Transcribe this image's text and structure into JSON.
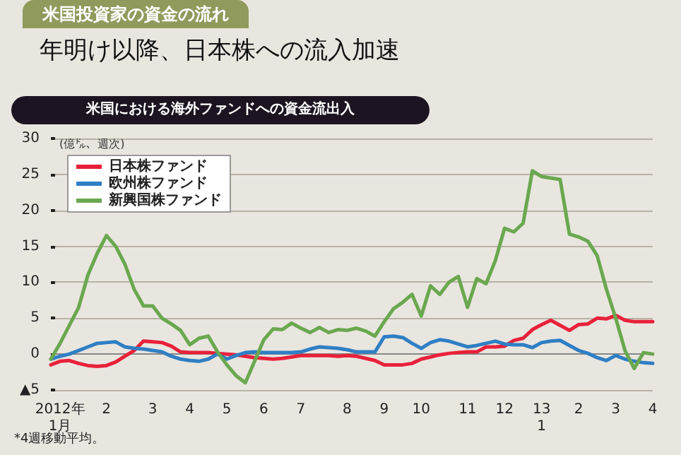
{
  "chart_data": {
    "type": "line",
    "title": "年明け以降、日本株への流入加速",
    "subtitle": "米国における海外ファンドへの資金流出入",
    "annotations": [
      "米国投資家の資金の流れ",
      "*4週移動平均。"
    ],
    "ylabel": "(億㌦、週次)",
    "categories": [
      null,
      "2012年\n1月",
      null,
      null,
      null,
      null,
      "2",
      null,
      null,
      null,
      null,
      "3",
      null,
      null,
      null,
      "4",
      null,
      null,
      null,
      "5",
      null,
      null,
      null,
      "6",
      null,
      null,
      null,
      "7",
      null,
      null,
      null,
      null,
      "8",
      null,
      null,
      null,
      "9",
      null,
      null,
      null,
      "10",
      null,
      null,
      null,
      null,
      "11",
      null,
      null,
      null,
      "12",
      null,
      null,
      null,
      "13\n1",
      null,
      null,
      null,
      "2",
      null,
      null,
      null,
      "3",
      null,
      null,
      null,
      "4"
    ],
    "series": [
      {
        "name": "日本株ファンド",
        "color": "#e8213a",
        "values": [
          -1.5,
          -1,
          -0.9,
          -1.3,
          -1.6,
          -1.7,
          -1.6,
          -1.1,
          -0.3,
          0.5,
          1.8,
          1.7,
          1.6,
          1.1,
          0.3,
          0.2,
          0.2,
          0.2,
          0.1,
          0,
          -0.1,
          -0.3,
          -0.5,
          -0.6,
          -0.7,
          -0.6,
          -0.4,
          -0.2,
          -0.2,
          -0.2,
          -0.2,
          -0.3,
          -0.2,
          -0.3,
          -0.6,
          -0.9,
          -1.5,
          -1.5,
          -1.5,
          -1.3,
          -0.7,
          -0.4,
          -0.1,
          0.1,
          0.2,
          0.3,
          0.3,
          1,
          1,
          1.1,
          1.9,
          2.2,
          3.4,
          4.1,
          4.7,
          4,
          3.3,
          4.1,
          4.2,
          5,
          4.9,
          5.4,
          4.7,
          4.5,
          4.5,
          4.5
        ]
      },
      {
        "name": "欧州株ファンド",
        "color": "#2f7fc4",
        "values": [
          -0.7,
          -0.3,
          0,
          0.5,
          1,
          1.5,
          1.6,
          1.7,
          1,
          0.8,
          0.7,
          0.5,
          0.3,
          -0.3,
          -0.7,
          -0.9,
          -1,
          -0.7,
          0,
          -0.7,
          -0.2,
          0.2,
          0.3,
          0.2,
          0.2,
          0.2,
          0.2,
          0.3,
          0.7,
          1,
          0.9,
          0.8,
          0.6,
          0.3,
          0.3,
          0.3,
          2.4,
          2.5,
          2.3,
          1.5,
          0.8,
          1.6,
          2,
          1.8,
          1.4,
          1,
          1.2,
          1.5,
          1.8,
          1.4,
          1.3,
          1.3,
          0.9,
          1.6,
          1.8,
          1.9,
          1.2,
          0.5,
          0.1,
          -0.5,
          -0.9,
          -0.2,
          -0.7,
          -1,
          -1.2,
          -1.3
        ]
      },
      {
        "name": "新興国株ファンド",
        "color": "#6aa84f",
        "values": [
          -0.7,
          1.5,
          4,
          6.5,
          11,
          14,
          16.5,
          15,
          12.5,
          9,
          6.7,
          6.7,
          5,
          4.2,
          3.3,
          1.3,
          2.2,
          2.5,
          0.3,
          -1.5,
          -3,
          -4,
          -1,
          2,
          3.5,
          3.4,
          4.3,
          3.6,
          3,
          3.7,
          3,
          3.4,
          3.3,
          3.6,
          3.2,
          2.5,
          4.5,
          6.3,
          7.2,
          8.3,
          5.3,
          9.5,
          8.3,
          10,
          10.8,
          6.5,
          10.5,
          9.8,
          13,
          17.5,
          17,
          18.2,
          25.5,
          24.7,
          24.5,
          24.3,
          16.7,
          16.3,
          15.7,
          13.7,
          9,
          5,
          0.5,
          -2,
          0.2,
          0
        ]
      }
    ],
    "ylim": [
      -5,
      30
    ],
    "yticks": [
      {
        "value": -5,
        "label": "▲5"
      },
      0,
      5,
      10,
      15,
      20,
      25,
      30
    ],
    "grid": "y",
    "legend": "top left",
    "marker": "none",
    "line_style": "solid"
  }
}
